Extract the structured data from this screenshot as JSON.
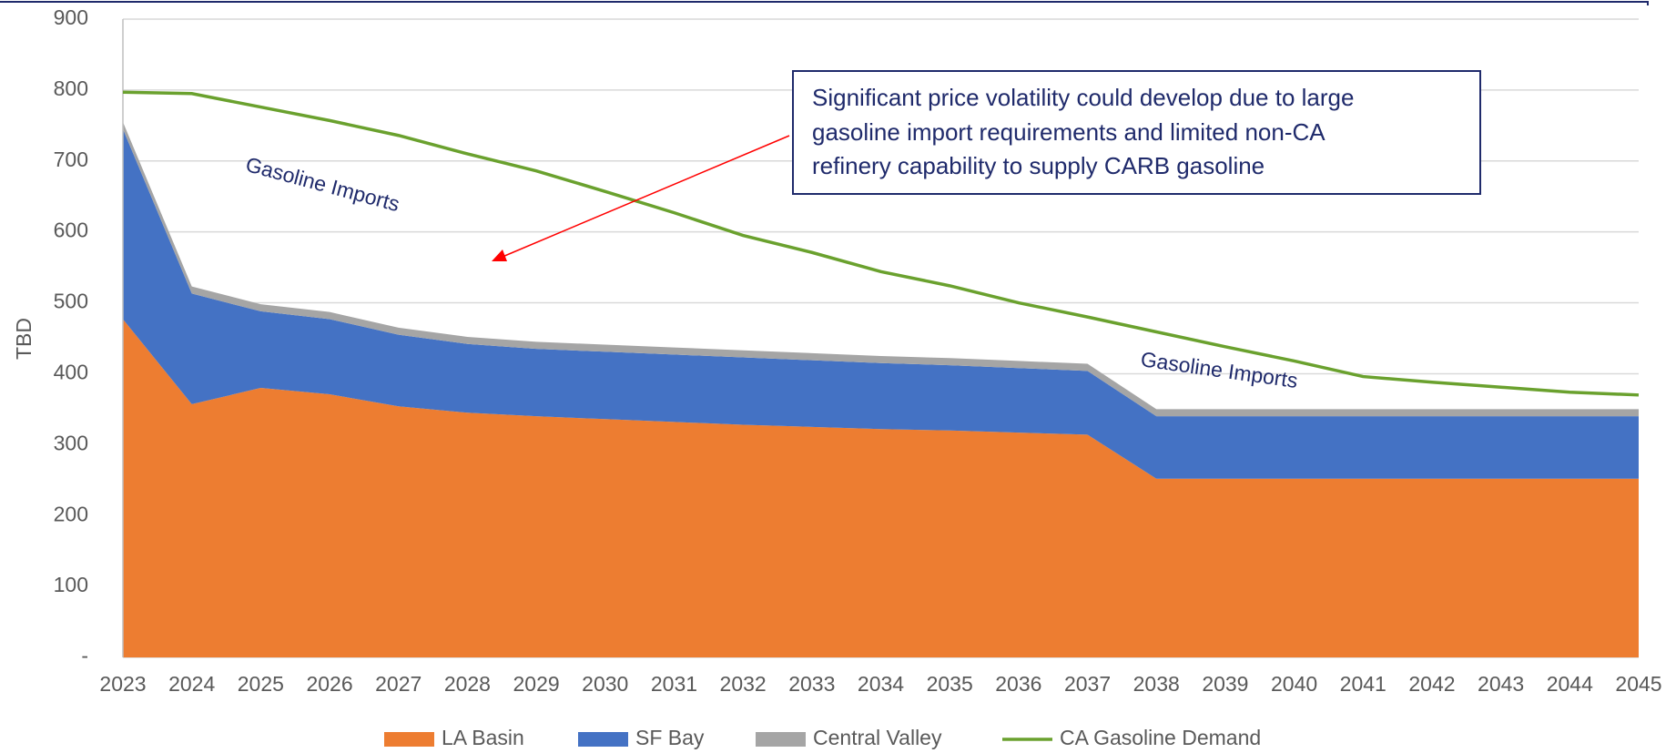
{
  "chart_data": {
    "type": "stacked_area",
    "y_label": "TBD",
    "categories": [
      "2023",
      "2024",
      "2025",
      "2026",
      "2027",
      "2028",
      "2029",
      "2030",
      "2031",
      "2032",
      "2033",
      "2034",
      "2035",
      "2036",
      "2037",
      "2038",
      "2039",
      "2040",
      "2041",
      "2042",
      "2043",
      "2044",
      "2045"
    ],
    "series": [
      {
        "name": "LA Basin",
        "color": "#ED7D31",
        "values": [
          477,
          357,
          380,
          371,
          354,
          345,
          340,
          336,
          332,
          328,
          325,
          322,
          320,
          317,
          314,
          252,
          252,
          252,
          252,
          252,
          252,
          252,
          252
        ]
      },
      {
        "name": "SF Bay",
        "color": "#4472C4",
        "values": [
          268,
          156,
          108,
          106,
          101,
          97,
          95,
          95,
          95,
          95,
          94,
          93,
          92,
          91,
          90,
          88,
          88,
          88,
          88,
          88,
          88,
          88,
          88
        ]
      },
      {
        "name": "Central Valley",
        "color": "#A5A5A5",
        "values": [
          10,
          10,
          10,
          10,
          10,
          10,
          10,
          10,
          10,
          10,
          10,
          10,
          10,
          10,
          10,
          10,
          10,
          10,
          10,
          10,
          10,
          10,
          10
        ]
      }
    ],
    "line_series": [
      {
        "name": "CA Gasoline Demand",
        "color": "#6AA12E",
        "values": [
          797,
          795,
          776,
          757,
          736,
          710,
          686,
          657,
          627,
          595,
          571,
          544,
          524,
          500,
          480,
          459,
          438,
          418,
          396,
          388,
          381,
          374,
          370
        ]
      }
    ],
    "ylim": [
      0,
      900
    ],
    "yticks": [
      {
        "value": 0,
        "label": "-"
      },
      100,
      200,
      300,
      400,
      500,
      600,
      700,
      800,
      900
    ],
    "grid": true,
    "legend": "bottom",
    "annotation_lines": [
      "Significant price volatility could develop due to large",
      "gasoline import requirements and limited non-CA",
      "refinery capability to supply CARB gasoline"
    ],
    "region_labels": [
      "Gasoline Imports",
      "Gasoline Imports"
    ]
  }
}
